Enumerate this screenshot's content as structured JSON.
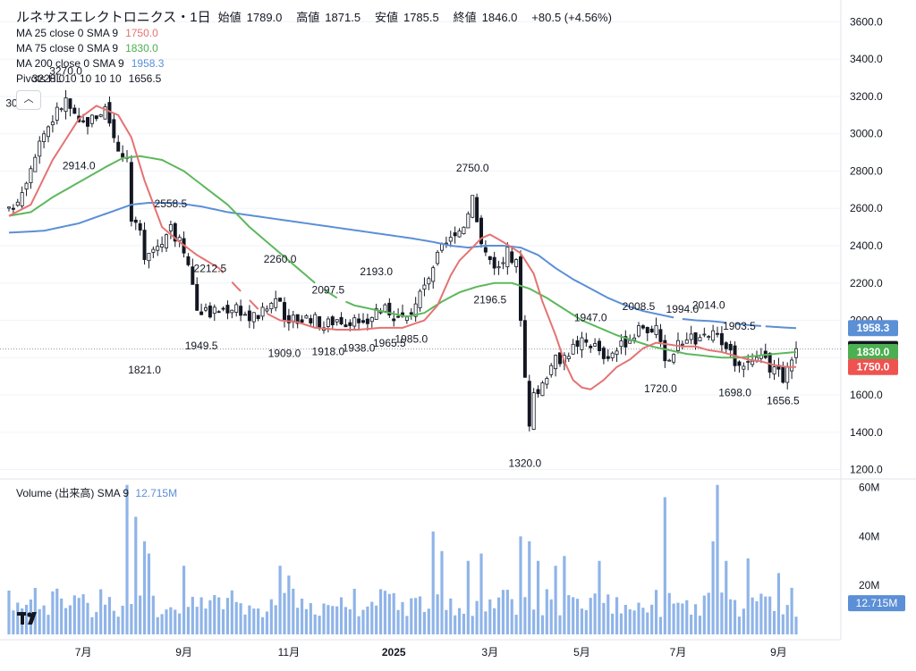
{
  "header": {
    "title": "ルネサスエレクトロニクス・1日",
    "open_label": "始値",
    "open": "1789.0",
    "high_label": "高値",
    "high": "1871.5",
    "low_label": "安値",
    "low": "1785.5",
    "close_label": "終値",
    "close": "1846.0",
    "change": "+80.5 (+4.56%)"
  },
  "indicators": [
    {
      "label": "MA 25 close 0 SMA 9",
      "value": "1750.0",
      "color": "#e57373"
    },
    {
      "label": "MA 75 close 0 SMA 9",
      "value": "1830.0",
      "color": "#5cb85c"
    },
    {
      "label": "MA 200 close 0 SMA 9",
      "value": "1958.3",
      "color": "#5b8fd6"
    },
    {
      "label": "Pivots HL 10 10 10 10",
      "value": "1656.5",
      "color": "#131722"
    }
  ],
  "collapse_glyph": "︿",
  "volume_legend": {
    "label": "Volume (出来高) SMA 9",
    "value": "12.715M",
    "color": "#5b8fd6"
  },
  "colors": {
    "up": "#ffffff",
    "down": "#131722",
    "candle_border": "#131722",
    "volume": "#8fb4e8",
    "grid": "#f0f3fa"
  },
  "chart_data": {
    "type": "candlestick",
    "price_axis": {
      "ylim": [
        1150,
        3650
      ],
      "ticks": [
        "3600.0",
        "3400.0",
        "3200.0",
        "3000.0",
        "2800.0",
        "2600.0",
        "2400.0",
        "2200.0",
        "2000.0",
        "1800.0",
        "1600.0",
        "1400.0",
        "1200.0"
      ]
    },
    "volume_axis": {
      "ylim": [
        0,
        62
      ],
      "unit": "M",
      "ticks": [
        "60M",
        "40M",
        "20M"
      ]
    },
    "x_axis": {
      "labels": [
        "7月",
        "9月",
        "11月",
        "2025",
        "3月",
        "5月",
        "7月",
        "9月"
      ],
      "label_index": [
        17,
        40,
        64,
        88,
        110,
        131,
        153,
        176
      ]
    },
    "price_markers": [
      {
        "label": "1958.3",
        "value": 1958.3,
        "color": "#5b8fd6"
      },
      {
        "label": "1846.0",
        "value": 1846.0,
        "color": "#131722"
      },
      {
        "label": "1830.0",
        "value": 1830.0,
        "color": "#4caf50"
      },
      {
        "label": "1750.0",
        "value": 1750.0,
        "color": "#ef5350"
      }
    ],
    "volume_marker": {
      "label": "12.715M",
      "value": 12.715,
      "color": "#5b8fd6"
    },
    "pivots": [
      {
        "label": "3097.0",
        "i": 3,
        "price": 3097,
        "pos": "above"
      },
      {
        "label": "3228.0",
        "i": 9,
        "price": 3228,
        "pos": "above"
      },
      {
        "label": "3270.0",
        "i": 13,
        "price": 3270,
        "pos": "above"
      },
      {
        "label": "2914.0",
        "i": 16,
        "price": 2914,
        "pos": "below"
      },
      {
        "label": "2558.5",
        "i": 37,
        "price": 2558,
        "pos": "above"
      },
      {
        "label": "1821.0",
        "i": 31,
        "price": 1821,
        "pos": "below"
      },
      {
        "label": "2212.5",
        "i": 46,
        "price": 2212,
        "pos": "above"
      },
      {
        "label": "1949.5",
        "i": 44,
        "price": 1949,
        "pos": "below"
      },
      {
        "label": "2260.0",
        "i": 62,
        "price": 2260,
        "pos": "above"
      },
      {
        "label": "1909.0",
        "i": 63,
        "price": 1909,
        "pos": "below"
      },
      {
        "label": "2097.5",
        "i": 73,
        "price": 2097,
        "pos": "above"
      },
      {
        "label": "1918.0",
        "i": 73,
        "price": 1918,
        "pos": "below"
      },
      {
        "label": "1938.0",
        "i": 80,
        "price": 1938,
        "pos": "below"
      },
      {
        "label": "2193.0",
        "i": 84,
        "price": 2193,
        "pos": "above"
      },
      {
        "label": "1965.5",
        "i": 87,
        "price": 1965,
        "pos": "below"
      },
      {
        "label": "1985.0",
        "i": 92,
        "price": 1985,
        "pos": "below"
      },
      {
        "label": "2750.0",
        "i": 106,
        "price": 2750,
        "pos": "above"
      },
      {
        "label": "2196.5",
        "i": 110,
        "price": 2196,
        "pos": "below"
      },
      {
        "label": "1320.0",
        "i": 118,
        "price": 1320,
        "pos": "below"
      },
      {
        "label": "1947.0",
        "i": 133,
        "price": 1947,
        "pos": "above"
      },
      {
        "label": "2008.5",
        "i": 144,
        "price": 2008,
        "pos": "above"
      },
      {
        "label": "1720.0",
        "i": 149,
        "price": 1720,
        "pos": "below"
      },
      {
        "label": "1994.0",
        "i": 154,
        "price": 1994,
        "pos": "above"
      },
      {
        "label": "2014.0",
        "i": 160,
        "price": 2014,
        "pos": "above"
      },
      {
        "label": "1903.5",
        "i": 167,
        "price": 1903,
        "pos": "above"
      },
      {
        "label": "1698.0",
        "i": 166,
        "price": 1698,
        "pos": "below"
      },
      {
        "label": "1656.5",
        "i": 177,
        "price": 1656,
        "pos": "below"
      }
    ],
    "ma_anchors": {
      "ma25": [
        [
          0,
          2560
        ],
        [
          5,
          2620
        ],
        [
          10,
          2860
        ],
        [
          16,
          3080
        ],
        [
          20,
          3150
        ],
        [
          25,
          3100
        ],
        [
          28,
          2980
        ],
        [
          31,
          2750
        ],
        [
          35,
          2500
        ],
        [
          39,
          2420
        ],
        [
          43,
          2350
        ],
        [
          48,
          2280
        ],
        [
          52,
          2180
        ],
        [
          57,
          2060
        ],
        [
          62,
          2000
        ],
        [
          66,
          1990
        ],
        [
          70,
          1960
        ],
        [
          75,
          1950
        ],
        [
          80,
          1950
        ],
        [
          85,
          1960
        ],
        [
          90,
          1960
        ],
        [
          95,
          2000
        ],
        [
          98,
          2080
        ],
        [
          101,
          2240
        ],
        [
          103,
          2320
        ],
        [
          106,
          2390
        ],
        [
          108,
          2440
        ],
        [
          110,
          2460
        ],
        [
          113,
          2420
        ],
        [
          117,
          2360
        ],
        [
          120,
          2250
        ],
        [
          122,
          2100
        ],
        [
          125,
          1920
        ],
        [
          127,
          1780
        ],
        [
          129,
          1680
        ],
        [
          131,
          1640
        ],
        [
          133,
          1630
        ],
        [
          136,
          1680
        ],
        [
          139,
          1750
        ],
        [
          142,
          1790
        ],
        [
          145,
          1850
        ],
        [
          148,
          1880
        ],
        [
          151,
          1870
        ],
        [
          154,
          1860
        ],
        [
          157,
          1860
        ],
        [
          160,
          1840
        ],
        [
          163,
          1830
        ],
        [
          166,
          1810
        ],
        [
          169,
          1790
        ],
        [
          172,
          1780
        ],
        [
          175,
          1760
        ],
        [
          178,
          1750
        ],
        [
          180,
          1750
        ]
      ],
      "ma75": [
        [
          0,
          2560
        ],
        [
          5,
          2580
        ],
        [
          10,
          2660
        ],
        [
          16,
          2740
        ],
        [
          22,
          2820
        ],
        [
          26,
          2870
        ],
        [
          30,
          2880
        ],
        [
          35,
          2860
        ],
        [
          40,
          2800
        ],
        [
          45,
          2710
        ],
        [
          50,
          2620
        ],
        [
          55,
          2500
        ],
        [
          59,
          2420
        ],
        [
          63,
          2340
        ],
        [
          67,
          2260
        ],
        [
          71,
          2180
        ],
        [
          75,
          2120
        ],
        [
          79,
          2080
        ],
        [
          83,
          2060
        ],
        [
          87,
          2040
        ],
        [
          91,
          2020
        ],
        [
          95,
          2040
        ],
        [
          99,
          2100
        ],
        [
          103,
          2150
        ],
        [
          107,
          2180
        ],
        [
          111,
          2200
        ],
        [
          115,
          2200
        ],
        [
          119,
          2170
        ],
        [
          123,
          2120
        ],
        [
          127,
          2060
        ],
        [
          131,
          2000
        ],
        [
          135,
          1960
        ],
        [
          139,
          1920
        ],
        [
          143,
          1890
        ],
        [
          147,
          1860
        ],
        [
          151,
          1840
        ],
        [
          155,
          1820
        ],
        [
          159,
          1810
        ],
        [
          163,
          1800
        ],
        [
          167,
          1800
        ],
        [
          171,
          1810
        ],
        [
          175,
          1820
        ],
        [
          180,
          1830
        ]
      ],
      "ma200": [
        [
          0,
          2470
        ],
        [
          8,
          2480
        ],
        [
          16,
          2520
        ],
        [
          22,
          2570
        ],
        [
          28,
          2620
        ],
        [
          32,
          2630
        ],
        [
          38,
          2630
        ],
        [
          44,
          2610
        ],
        [
          50,
          2580
        ],
        [
          56,
          2560
        ],
        [
          62,
          2540
        ],
        [
          68,
          2520
        ],
        [
          74,
          2500
        ],
        [
          80,
          2480
        ],
        [
          86,
          2460
        ],
        [
          92,
          2440
        ],
        [
          97,
          2420
        ],
        [
          101,
          2400
        ],
        [
          105,
          2390
        ],
        [
          109,
          2400
        ],
        [
          113,
          2400
        ],
        [
          117,
          2390
        ],
        [
          121,
          2350
        ],
        [
          125,
          2280
        ],
        [
          129,
          2220
        ],
        [
          133,
          2170
        ],
        [
          137,
          2120
        ],
        [
          141,
          2080
        ],
        [
          145,
          2050
        ],
        [
          149,
          2030
        ],
        [
          153,
          2010
        ],
        [
          157,
          2000
        ],
        [
          161,
          1995
        ],
        [
          165,
          1985
        ],
        [
          169,
          1975
        ],
        [
          173,
          1968
        ],
        [
          177,
          1962
        ],
        [
          180,
          1958.3
        ]
      ]
    },
    "volume_highlights": [
      {
        "i": 27,
        "v": 61
      },
      {
        "i": 29,
        "v": 48
      },
      {
        "i": 31,
        "v": 38
      },
      {
        "i": 32,
        "v": 33
      },
      {
        "i": 40,
        "v": 28
      },
      {
        "i": 62,
        "v": 28
      },
      {
        "i": 64,
        "v": 24
      },
      {
        "i": 97,
        "v": 42
      },
      {
        "i": 99,
        "v": 34
      },
      {
        "i": 105,
        "v": 30
      },
      {
        "i": 108,
        "v": 33
      },
      {
        "i": 117,
        "v": 40
      },
      {
        "i": 119,
        "v": 38
      },
      {
        "i": 121,
        "v": 30
      },
      {
        "i": 125,
        "v": 28
      },
      {
        "i": 127,
        "v": 32
      },
      {
        "i": 135,
        "v": 30
      },
      {
        "i": 150,
        "v": 56
      },
      {
        "i": 161,
        "v": 38
      },
      {
        "i": 162,
        "v": 61
      },
      {
        "i": 164,
        "v": 30
      },
      {
        "i": 169,
        "v": 31
      },
      {
        "i": 176,
        "v": 25
      },
      {
        "i": 179,
        "v": 19
      }
    ],
    "candles": {
      "count": 181,
      "close_anchors": [
        [
          0,
          2580
        ],
        [
          3,
          2700
        ],
        [
          7,
          2970
        ],
        [
          11,
          3120
        ],
        [
          13,
          3180
        ],
        [
          16,
          3040
        ],
        [
          19,
          3080
        ],
        [
          22,
          3140
        ],
        [
          25,
          2920
        ],
        [
          27,
          2880
        ],
        [
          28,
          2540
        ],
        [
          30,
          2460
        ],
        [
          31,
          2300
        ],
        [
          33,
          2380
        ],
        [
          35,
          2420
        ],
        [
          37,
          2480
        ],
        [
          39,
          2420
        ],
        [
          41,
          2330
        ],
        [
          43,
          2060
        ],
        [
          46,
          2040
        ],
        [
          49,
          2060
        ],
        [
          52,
          2080
        ],
        [
          55,
          2010
        ],
        [
          58,
          2040
        ],
        [
          61,
          2120
        ],
        [
          63,
          2020
        ],
        [
          66,
          2000
        ],
        [
          69,
          2020
        ],
        [
          72,
          1970
        ],
        [
          75,
          2010
        ],
        [
          78,
          1990
        ],
        [
          81,
          1960
        ],
        [
          84,
          2060
        ],
        [
          87,
          2050
        ],
        [
          90,
          1990
        ],
        [
          93,
          2060
        ],
        [
          96,
          2250
        ],
        [
          99,
          2380
        ],
        [
          102,
          2450
        ],
        [
          104,
          2520
        ],
        [
          106,
          2660
        ],
        [
          108,
          2390
        ],
        [
          110,
          2330
        ],
        [
          112,
          2280
        ],
        [
          114,
          2360
        ],
        [
          116,
          2300
        ],
        [
          117,
          2030
        ],
        [
          118,
          1700
        ],
        [
          119,
          1460
        ],
        [
          120,
          1580
        ],
        [
          122,
          1650
        ],
        [
          124,
          1780
        ],
        [
          127,
          1810
        ],
        [
          130,
          1880
        ],
        [
          133,
          1880
        ],
        [
          136,
          1820
        ],
        [
          139,
          1840
        ],
        [
          142,
          1910
        ],
        [
          145,
          1950
        ],
        [
          148,
          1960
        ],
        [
          150,
          1760
        ],
        [
          152,
          1840
        ],
        [
          155,
          1920
        ],
        [
          158,
          1880
        ],
        [
          161,
          1940
        ],
        [
          163,
          1850
        ],
        [
          166,
          1790
        ],
        [
          169,
          1770
        ],
        [
          172,
          1780
        ],
        [
          175,
          1740
        ],
        [
          177,
          1700
        ],
        [
          179,
          1800
        ],
        [
          180,
          1846
        ]
      ]
    }
  }
}
